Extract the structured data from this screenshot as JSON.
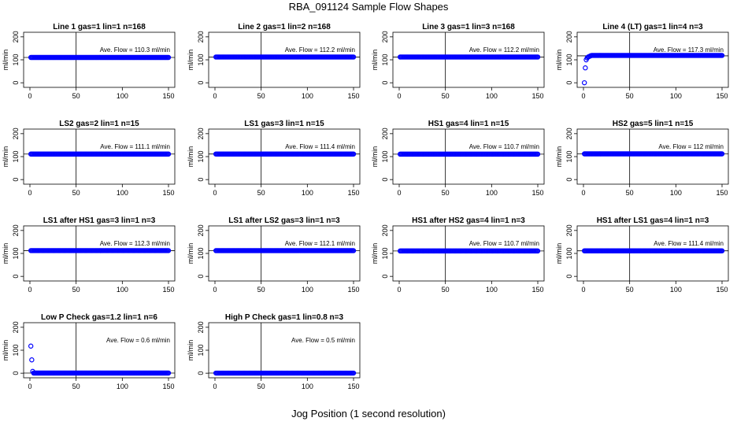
{
  "figure": {
    "title": "RBA_091124  Sample Flow Shapes",
    "xlabel": "Jog Position (1 second resolution)"
  },
  "colors": {
    "points": "#0000ff",
    "axes": "#000000",
    "background": "#ffffff"
  },
  "chart_data": [
    {
      "type": "scatter",
      "title": "Line 1 gas=1 lin=1 n=168",
      "ylabel": "ml/min",
      "xlim": [
        0,
        150
      ],
      "ylim": [
        -20,
        220
      ],
      "xticks": [
        0,
        50,
        100,
        150
      ],
      "yticks": [
        0,
        100,
        200
      ],
      "vline": 50,
      "hline": 110.3,
      "ann_flow": "110.3",
      "ann_prefix": "Ave. Flow =",
      "ann_unit": "ml/min",
      "series": [
        {
          "x": [
            1,
            150
          ],
          "y_level": 110.3,
          "ramp": []
        }
      ]
    },
    {
      "type": "scatter",
      "title": "Line 2 gas=1 lin=2 n=168",
      "ylabel": "ml/min",
      "xlim": [
        0,
        150
      ],
      "ylim": [
        -20,
        220
      ],
      "xticks": [
        0,
        50,
        100,
        150
      ],
      "yticks": [
        0,
        100,
        200
      ],
      "vline": 50,
      "hline": 112.2,
      "ann_flow": "112.2",
      "ann_prefix": "Ave. Flow =",
      "ann_unit": "ml/min",
      "series": [
        {
          "x": [
            1,
            150
          ],
          "y_level": 112.2,
          "ramp": []
        }
      ]
    },
    {
      "type": "scatter",
      "title": "Line 3 gas=1 lin=3 n=168",
      "ylabel": "ml/min",
      "xlim": [
        0,
        150
      ],
      "ylim": [
        -20,
        220
      ],
      "xticks": [
        0,
        50,
        100,
        150
      ],
      "yticks": [
        0,
        100,
        200
      ],
      "vline": 50,
      "hline": 112.2,
      "ann_flow": "112.2",
      "ann_prefix": "Ave. Flow =",
      "ann_unit": "ml/min",
      "series": [
        {
          "x": [
            1,
            150
          ],
          "y_level": 112.2,
          "ramp": []
        }
      ]
    },
    {
      "type": "scatter",
      "title": "Line 4 (LT) gas=1 lin=4 n=3",
      "ylabel": "ml/min",
      "xlim": [
        0,
        150
      ],
      "ylim": [
        -20,
        220
      ],
      "xticks": [
        0,
        50,
        100,
        150
      ],
      "yticks": [
        0,
        100,
        200
      ],
      "vline": 50,
      "hline": 117.3,
      "ann_flow": "117.3",
      "ann_prefix": "Ave. Flow =",
      "ann_unit": "ml/min",
      "series": [
        {
          "x": [
            9,
            150
          ],
          "y_level": 119,
          "ramp": [
            [
              1,
              0
            ],
            [
              2,
              65
            ],
            [
              3,
              100
            ],
            [
              4,
              108
            ],
            [
              5,
              112
            ],
            [
              6,
              114
            ],
            [
              7,
              116
            ],
            [
              8,
              118
            ]
          ]
        }
      ]
    },
    {
      "type": "scatter",
      "title": "LS2 gas=2 lin=1 n=15",
      "ylabel": "ml/min",
      "xlim": [
        0,
        150
      ],
      "ylim": [
        -20,
        220
      ],
      "xticks": [
        0,
        50,
        100,
        150
      ],
      "yticks": [
        0,
        100,
        200
      ],
      "vline": 50,
      "hline": 111.1,
      "ann_flow": "111.1",
      "ann_prefix": "Ave. Flow =",
      "ann_unit": "ml/min",
      "series": [
        {
          "x": [
            1,
            150
          ],
          "y_level": 111.1,
          "ramp": []
        }
      ]
    },
    {
      "type": "scatter",
      "title": "LS1 gas=3 lin=1 n=15",
      "ylabel": "ml/min",
      "xlim": [
        0,
        150
      ],
      "ylim": [
        -20,
        220
      ],
      "xticks": [
        0,
        50,
        100,
        150
      ],
      "yticks": [
        0,
        100,
        200
      ],
      "vline": 50,
      "hline": 111.4,
      "ann_flow": "111.4",
      "ann_prefix": "Ave. Flow =",
      "ann_unit": "ml/min",
      "series": [
        {
          "x": [
            1,
            150
          ],
          "y_level": 111.4,
          "ramp": []
        }
      ]
    },
    {
      "type": "scatter",
      "title": "HS1 gas=4 lin=1 n=15",
      "ylabel": "ml/min",
      "xlim": [
        0,
        150
      ],
      "ylim": [
        -20,
        220
      ],
      "xticks": [
        0,
        50,
        100,
        150
      ],
      "yticks": [
        0,
        100,
        200
      ],
      "vline": 50,
      "hline": 110.7,
      "ann_flow": "110.7",
      "ann_prefix": "Ave. Flow =",
      "ann_unit": "ml/min",
      "series": [
        {
          "x": [
            1,
            150
          ],
          "y_level": 110.7,
          "ramp": []
        }
      ]
    },
    {
      "type": "scatter",
      "title": "HS2 gas=5 lin=1 n=15",
      "ylabel": "ml/min",
      "xlim": [
        0,
        150
      ],
      "ylim": [
        -20,
        220
      ],
      "xticks": [
        0,
        50,
        100,
        150
      ],
      "yticks": [
        0,
        100,
        200
      ],
      "vline": 50,
      "hline": 112,
      "ann_flow": "112",
      "ann_prefix": "Ave. Flow =",
      "ann_unit": "ml/min",
      "series": [
        {
          "x": [
            1,
            150
          ],
          "y_level": 112,
          "ramp": []
        }
      ]
    },
    {
      "type": "scatter",
      "title": "LS1 after HS1 gas=3 lin=1 n=3",
      "ylabel": "ml/min",
      "xlim": [
        0,
        150
      ],
      "ylim": [
        -20,
        220
      ],
      "xticks": [
        0,
        50,
        100,
        150
      ],
      "yticks": [
        0,
        100,
        200
      ],
      "vline": 50,
      "hline": 112.3,
      "ann_flow": "112.3",
      "ann_prefix": "Ave. Flow =",
      "ann_unit": "ml/min",
      "series": [
        {
          "x": [
            1,
            150
          ],
          "y_level": 112.3,
          "ramp": []
        }
      ]
    },
    {
      "type": "scatter",
      "title": "LS1 after LS2 gas=3 lin=1 n=3",
      "ylabel": "ml/min",
      "xlim": [
        0,
        150
      ],
      "ylim": [
        -20,
        220
      ],
      "xticks": [
        0,
        50,
        100,
        150
      ],
      "yticks": [
        0,
        100,
        200
      ],
      "vline": 50,
      "hline": 112.1,
      "ann_flow": "112.1",
      "ann_prefix": "Ave. Flow =",
      "ann_unit": "ml/min",
      "series": [
        {
          "x": [
            1,
            150
          ],
          "y_level": 112.1,
          "ramp": []
        }
      ]
    },
    {
      "type": "scatter",
      "title": "HS1 after HS2 gas=4 lin=1 n=3",
      "ylabel": "ml/min",
      "xlim": [
        0,
        150
      ],
      "ylim": [
        -20,
        220
      ],
      "xticks": [
        0,
        50,
        100,
        150
      ],
      "yticks": [
        0,
        100,
        200
      ],
      "vline": 50,
      "hline": 110.7,
      "ann_flow": "110.7",
      "ann_prefix": "Ave. Flow =",
      "ann_unit": "ml/min",
      "series": [
        {
          "x": [
            1,
            150
          ],
          "y_level": 110.7,
          "ramp": []
        }
      ]
    },
    {
      "type": "scatter",
      "title": "HS1 after LS1 gas=4 lin=1 n=3",
      "ylabel": "ml/min",
      "xlim": [
        0,
        150
      ],
      "ylim": [
        -20,
        220
      ],
      "xticks": [
        0,
        50,
        100,
        150
      ],
      "yticks": [
        0,
        100,
        200
      ],
      "vline": 50,
      "hline": 111.4,
      "ann_flow": "111.4",
      "ann_prefix": "Ave. Flow =",
      "ann_unit": "ml/min",
      "series": [
        {
          "x": [
            1,
            150
          ],
          "y_level": 111.4,
          "ramp": []
        }
      ]
    },
    {
      "type": "scatter",
      "title": "Low P Check gas=1.2 lin=1 n=6",
      "ylabel": "ml/min",
      "xlim": [
        0,
        150
      ],
      "ylim": [
        -20,
        220
      ],
      "xticks": [
        0,
        50,
        100,
        150
      ],
      "yticks": [
        0,
        100,
        200
      ],
      "vline": 50,
      "hline": 0.6,
      "ann_flow": "0.6",
      "ann_prefix": "Ave. Flow =",
      "ann_unit": "ml/min",
      "series": [
        {
          "x": [
            4,
            150
          ],
          "y_level": 0.6,
          "ramp": [
            [
              1,
              118
            ],
            [
              2,
              58
            ],
            [
              3,
              8
            ]
          ]
        }
      ]
    },
    {
      "type": "scatter",
      "title": "High P Check gas=1 lin=0.8 n=3",
      "ylabel": "ml/min",
      "xlim": [
        0,
        150
      ],
      "ylim": [
        -20,
        220
      ],
      "xticks": [
        0,
        50,
        100,
        150
      ],
      "yticks": [
        0,
        100,
        200
      ],
      "vline": 50,
      "hline": 0.5,
      "ann_flow": "0.5",
      "ann_prefix": "Ave. Flow =",
      "ann_unit": "ml/min",
      "series": [
        {
          "x": [
            1,
            150
          ],
          "y_level": 0.5,
          "ramp": []
        }
      ]
    }
  ]
}
